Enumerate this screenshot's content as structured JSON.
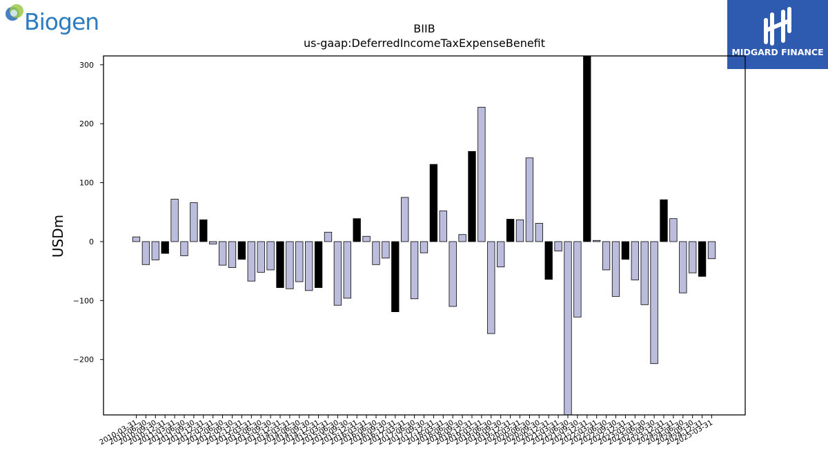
{
  "logos": {
    "left_brand": "Biogen",
    "right_brand": "MIDGARD FINANCE"
  },
  "colors": {
    "bar_fill": "#bcbcdc",
    "highlight_fill": "#000000",
    "bar_edge": "#000000",
    "right_logo_bg": "#2e5bb0",
    "left_logo_text": "#2a7bbf"
  },
  "chart_data": {
    "type": "bar",
    "title": "BIIB",
    "subtitle": "us-gaap:DeferredIncomeTaxExpenseBenefit",
    "xlabel": "",
    "ylabel": "USDm",
    "ylim": [
      -294,
      315
    ],
    "yticks": [
      -200,
      -100,
      0,
      100,
      200,
      300
    ],
    "grid": false,
    "categories": [
      "2010-03-31",
      "2010-06-30",
      "2010-09-30",
      "2010-12-31",
      "2011-03-31",
      "2011-06-30",
      "2011-09-30",
      "2011-12-31",
      "2012-03-31",
      "2012-06-30",
      "2012-09-30",
      "2012-12-31",
      "2013-03-31",
      "2013-06-30",
      "2013-09-30",
      "2013-12-31",
      "2014-03-31",
      "2014-06-30",
      "2014-09-30",
      "2014-12-31",
      "2015-03-31",
      "2015-06-30",
      "2015-09-30",
      "2015-12-31",
      "2016-03-31",
      "2016-06-30",
      "2016-09-30",
      "2016-12-31",
      "2017-03-31",
      "2017-06-30",
      "2017-09-30",
      "2017-12-31",
      "2018-03-31",
      "2018-06-30",
      "2018-09-30",
      "2018-12-31",
      "2019-03-31",
      "2019-06-30",
      "2019-09-30",
      "2019-12-31",
      "2020-03-31",
      "2020-06-30",
      "2020-09-30",
      "2020-12-31",
      "2021-03-31",
      "2021-06-30",
      "2021-09-30",
      "2021-12-31",
      "2022-03-31",
      "2022-06-30",
      "2022-09-30",
      "2022-12-31",
      "2023-03-31",
      "2023-06-30",
      "2023-09-30",
      "2023-12-31",
      "2024-03-31",
      "2024-06-30",
      "2024-09-30",
      "2024-12-31",
      "2025-03-31"
    ],
    "values": [
      8,
      -39,
      -31,
      -20,
      72,
      -24,
      66,
      37,
      -4,
      -40,
      -44,
      -30,
      -67,
      -52,
      -48,
      -78,
      -80,
      -68,
      -83,
      -78,
      16,
      -108,
      -96,
      39,
      9,
      -39,
      -28,
      -119,
      75,
      -97,
      -19,
      131,
      52,
      -110,
      12,
      153,
      228,
      -156,
      -43,
      38,
      37,
      142,
      31,
      -64,
      -16,
      -295,
      -128,
      315,
      2,
      -48,
      -93,
      -30,
      -65,
      -107,
      -207,
      71,
      39,
      -87,
      -53,
      -59,
      -29
    ],
    "highlight_quarter": "12-31"
  }
}
